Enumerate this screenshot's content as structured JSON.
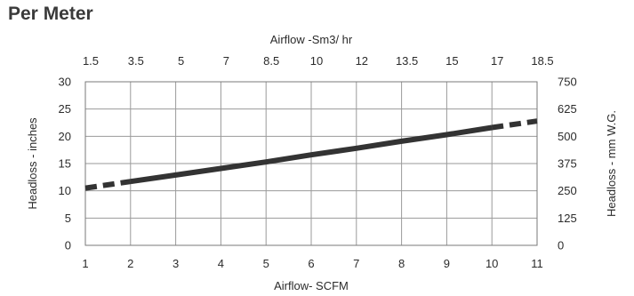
{
  "page": {
    "title": "Per Meter"
  },
  "chart_data": {
    "type": "line",
    "x_bottom": {
      "label": "Airflow- SCFM",
      "range": [
        1,
        11
      ],
      "ticks": [
        "1",
        "2",
        "3",
        "4",
        "5",
        "6",
        "7",
        "8",
        "9",
        "10",
        "11"
      ]
    },
    "x_top": {
      "label": "Airflow -Sm3/ hr",
      "ticks": [
        "1.5",
        "3.5",
        "5",
        "7",
        "8.5",
        "10",
        "12",
        "13.5",
        "15",
        "17",
        "18.5"
      ]
    },
    "y_left": {
      "label": "Headloss - inches",
      "range": [
        0,
        30
      ],
      "ticks": [
        "0",
        "5",
        "10",
        "15",
        "20",
        "25",
        "30"
      ]
    },
    "y_right": {
      "label": "Headloss - mm W.G.",
      "ticks": [
        "0",
        "125",
        "250",
        "375",
        "500",
        "625",
        "750"
      ]
    },
    "grid": true,
    "series": [
      {
        "x": [
          1,
          2,
          3,
          4,
          5,
          6,
          7,
          8,
          9,
          10,
          11
        ],
        "y": [
          10.5,
          11.7,
          12.9,
          14.1,
          15.3,
          16.6,
          17.8,
          19.1,
          20.3,
          21.6,
          22.8
        ],
        "solid_range": [
          2,
          10
        ],
        "color": "#333333"
      }
    ]
  }
}
